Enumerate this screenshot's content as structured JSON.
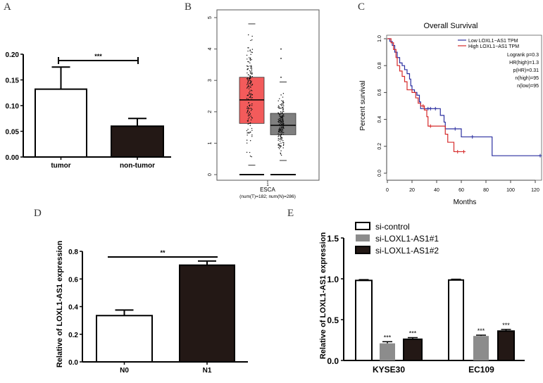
{
  "panel_labels": [
    "A",
    "B",
    "C",
    "D",
    "E"
  ],
  "chart_data": [
    {
      "panel": "A",
      "type": "bar",
      "categories": [
        "tumor",
        "non-tumor"
      ],
      "values": [
        0.132,
        0.06
      ],
      "error_upper": [
        0.175,
        0.075
      ],
      "fills": [
        "#ffffff",
        "#231815"
      ],
      "ylim": [
        0,
        0.2
      ],
      "yticks": [
        "0.00",
        "0.05",
        "0.10",
        "0.15",
        "0.20"
      ],
      "ylabel": "",
      "significance": "***"
    },
    {
      "panel": "B",
      "type": "box",
      "categories": [
        "1"
      ],
      "xlabel": "ESCA",
      "subtitle": "(num(T)=182; num(N)=286)",
      "ylim": [
        0,
        5
      ],
      "yticks": [
        "0",
        "1",
        "2",
        "3",
        "4",
        "5"
      ],
      "boxes": [
        {
          "group": "T",
          "color": "#f35b5b",
          "whisker_low": 0.3,
          "q1": 1.63,
          "median": 2.38,
          "q3": 3.1,
          "whisker_high": 4.8,
          "n": 182
        },
        {
          "group": "N",
          "color": "#7f7f7f",
          "whisker_low": 0.45,
          "q1": 1.27,
          "median": 1.57,
          "q3": 1.95,
          "whisker_high": 2.95,
          "n": 286,
          "outliers": [
            3.1,
            3.7,
            4.0
          ]
        }
      ]
    },
    {
      "panel": "C",
      "type": "line",
      "title": "Overall Survival",
      "xlabel": "Months",
      "ylabel": "Percent survival",
      "xlim": [
        0,
        125
      ],
      "ylim": [
        0,
        1.0
      ],
      "xticks": [
        "0",
        "20",
        "40",
        "60",
        "80",
        "100",
        "120"
      ],
      "yticks": [
        "0.0",
        "0.2",
        "0.4",
        "0.6",
        "0.8",
        "1.0"
      ],
      "legend": "top-right",
      "stats": [
        "Logrank p=0.3",
        "HR(high)=1.3",
        "p(HR)=0.31",
        "n(high)=95",
        "n(low)=95"
      ],
      "series": [
        {
          "name": "Low LOXL1−AS1 TPM",
          "color": "#2b2fa0",
          "x": [
            0,
            2,
            4,
            6,
            8,
            10,
            12,
            14,
            16,
            18,
            19,
            20,
            22,
            24,
            26,
            27,
            43,
            46,
            47,
            60,
            85,
            124
          ],
          "y": [
            1,
            0.98,
            0.95,
            0.9,
            0.86,
            0.82,
            0.8,
            0.77,
            0.74,
            0.7,
            0.65,
            0.62,
            0.6,
            0.58,
            0.53,
            0.48,
            0.43,
            0.38,
            0.33,
            0.27,
            0.13,
            0.13
          ],
          "censored_x": [
            33,
            35,
            39,
            55,
            69,
            124
          ]
        },
        {
          "name": "High LOXL1−AS1 TPM",
          "color": "#d62b2b",
          "x": [
            0,
            3,
            5,
            7,
            8,
            10,
            12,
            14,
            16,
            20,
            23,
            25,
            27,
            30,
            32,
            33,
            47,
            49,
            54,
            62
          ],
          "y": [
            1,
            0.97,
            0.92,
            0.86,
            0.8,
            0.76,
            0.72,
            0.68,
            0.62,
            0.6,
            0.56,
            0.52,
            0.5,
            0.47,
            0.42,
            0.35,
            0.29,
            0.23,
            0.16,
            0.16
          ],
          "censored_x": [
            29,
            35,
            57,
            62
          ]
        }
      ]
    },
    {
      "panel": "D",
      "type": "bar",
      "categories": [
        "N0",
        "N1"
      ],
      "values": [
        0.335,
        0.7
      ],
      "error_upper": [
        0.375,
        0.73
      ],
      "fills": [
        "#ffffff",
        "#231815"
      ],
      "ylim": [
        0,
        0.8
      ],
      "yticks": [
        "0.0",
        "0.2",
        "0.4",
        "0.6",
        "0.8"
      ],
      "ylabel": "Relative of LOXL1-AS1 expression",
      "significance": "**"
    },
    {
      "panel": "E",
      "type": "bar",
      "categories": [
        "KYSE30",
        "EC109"
      ],
      "ylim": [
        0,
        1.5
      ],
      "yticks": [
        "0.0",
        "0.5",
        "1.0",
        "1.5"
      ],
      "ylabel": "Relative of LOXL1-AS1 expression",
      "legend": "top-left",
      "series": [
        {
          "name": "si-control",
          "color": "#ffffff",
          "values": [
            0.98,
            0.985
          ],
          "error_upper": [
            0.99,
            0.995
          ],
          "significance": [
            "",
            ""
          ]
        },
        {
          "name": "si-LOXL1-AS1#1",
          "color": "#8c8c8c",
          "values": [
            0.21,
            0.3
          ],
          "error_upper": [
            0.23,
            0.31
          ],
          "significance": [
            "***",
            "***"
          ]
        },
        {
          "name": "si-LOXL1-AS1#2",
          "color": "#231815",
          "values": [
            0.26,
            0.36
          ],
          "error_upper": [
            0.28,
            0.38
          ],
          "significance": [
            "***",
            "***"
          ]
        }
      ]
    }
  ]
}
